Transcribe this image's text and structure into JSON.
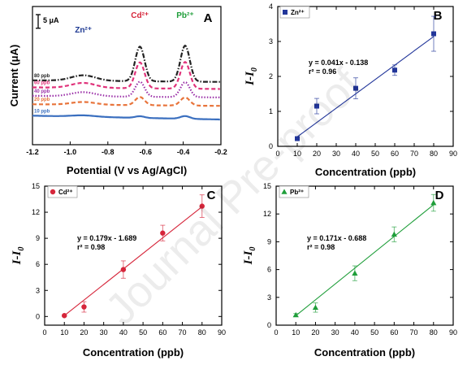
{
  "watermark": "Journal Pre-proof",
  "chart_data": [
    {
      "panel": "A",
      "type": "line",
      "xlabel": "Potential (V vs Ag/AgCl)",
      "ylabel": "Current (μA)",
      "xlim": [
        -1.2,
        -0.2
      ],
      "xticks": [
        -1.2,
        -1.0,
        -0.8,
        -0.6,
        -0.4,
        -0.2
      ],
      "xtick_labels": [
        "-1.2",
        "-1.0",
        "-0.8",
        "-0.6",
        "-0.4",
        "-0.2"
      ],
      "scale_bar": "5 μA",
      "scale_bar_value_uA": 5,
      "peaks": [
        {
          "label": "Zn²⁺",
          "potential": -0.93,
          "color": "#1f3a93"
        },
        {
          "label": "Cd²⁺",
          "potential": -0.63,
          "color": "#d6263b"
        },
        {
          "label": "Pb²⁺",
          "potential": -0.39,
          "color": "#1f9e3a"
        }
      ],
      "series": [
        {
          "name": "10 ppb",
          "color": "#3a6fbf",
          "style": "solid",
          "baseline_uA": 0.0,
          "zn_uA": 0.5,
          "cd_uA": 0.6,
          "pb_uA": 1.0
        },
        {
          "name": "20 ppb",
          "color": "#e8743b",
          "style": "dashed",
          "baseline_uA": 5.0,
          "zn_uA": 1.0,
          "cd_uA": 3.0,
          "pb_uA": 3.0
        },
        {
          "name": "40 ppb",
          "color": "#9b30a8",
          "style": "dotted",
          "baseline_uA": 8.1,
          "zn_uA": 1.5,
          "cd_uA": 5.5,
          "pb_uA": 5.5
        },
        {
          "name": "60 ppb",
          "color": "#e0327a",
          "style": "dashed",
          "baseline_uA": 11.2,
          "zn_uA": 1.8,
          "cd_uA": 9.5,
          "pb_uA": 9.8
        },
        {
          "name": "80 ppb",
          "color": "#222222",
          "style": "dashdot",
          "baseline_uA": 13.8,
          "zn_uA": 2.0,
          "cd_uA": 12.7,
          "pb_uA": 13.2
        }
      ]
    },
    {
      "panel": "B",
      "type": "scatter",
      "legend": "Zn²⁺",
      "legend_position": "top-left",
      "color": "#22369a",
      "marker": "square",
      "xlabel": "Concentration (ppb)",
      "ylabel": "I-I0",
      "xlim": [
        0,
        90
      ],
      "ylim": [
        0,
        4
      ],
      "xticks": [
        0,
        10,
        20,
        30,
        40,
        50,
        60,
        70,
        80,
        90
      ],
      "yticks": [
        0,
        1,
        2,
        3,
        4
      ],
      "x": [
        10,
        20,
        40,
        60,
        80
      ],
      "y": [
        0.22,
        1.15,
        1.66,
        2.18,
        3.22
      ],
      "yerr": [
        0.05,
        0.22,
        0.3,
        0.15,
        0.5
      ],
      "fit": {
        "slope": 0.041,
        "intercept": -0.138
      },
      "equation": "y = 0.041x - 0.138",
      "r2": "r² = 0.96"
    },
    {
      "panel": "C",
      "type": "scatter",
      "legend": "Cd²⁺",
      "legend_position": "top-left",
      "color": "#d6263b",
      "marker": "circle",
      "xlabel": "Concentration (ppb)",
      "ylabel": "I-I0",
      "xlim": [
        0,
        90
      ],
      "ylim": [
        -1,
        15
      ],
      "xticks": [
        0,
        10,
        20,
        30,
        40,
        50,
        60,
        70,
        80,
        90
      ],
      "yticks": [
        0,
        3,
        6,
        9,
        12,
        15
      ],
      "x": [
        10,
        20,
        40,
        60,
        80
      ],
      "y": [
        0.1,
        1.1,
        5.4,
        9.6,
        12.7
      ],
      "yerr": [
        0.1,
        0.6,
        1.0,
        0.9,
        1.3
      ],
      "fit": {
        "slope": 0.179,
        "intercept": -1.689
      },
      "equation": "y = 0.179x - 1.689",
      "r2": "r² = 0.98"
    },
    {
      "panel": "D",
      "type": "scatter",
      "legend": "Pb²⁺",
      "legend_position": "top-left",
      "color": "#1f9e3a",
      "marker": "triangle",
      "xlabel": "Concentration (ppb)",
      "ylabel": "I-I0",
      "xlim": [
        0,
        90
      ],
      "ylim": [
        0,
        15
      ],
      "xticks": [
        0,
        10,
        20,
        30,
        40,
        50,
        60,
        70,
        80,
        90
      ],
      "yticks": [
        0,
        3,
        6,
        9,
        12,
        15
      ],
      "x": [
        10,
        20,
        40,
        60,
        80
      ],
      "y": [
        1.1,
        1.9,
        5.6,
        9.8,
        13.2
      ],
      "yerr": [
        0.15,
        0.5,
        0.8,
        0.8,
        0.9
      ],
      "fit": {
        "slope": 0.171,
        "intercept": -0.688
      },
      "equation": "y = 0.171x - 0.688",
      "r2": "r² = 0.98"
    }
  ]
}
